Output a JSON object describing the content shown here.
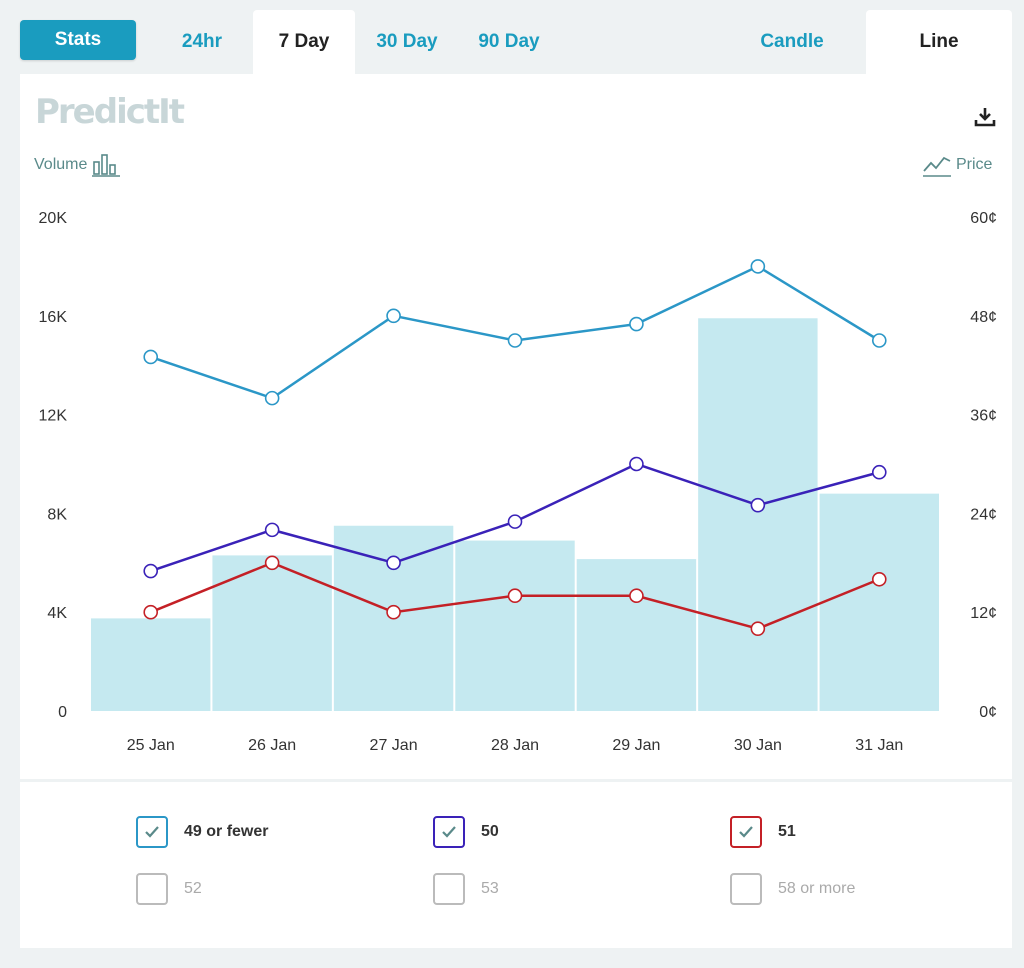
{
  "tabs": {
    "stats": "Stats",
    "ranges": [
      "24hr",
      "7 Day",
      "30 Day",
      "90 Day"
    ],
    "active_range": "7 Day",
    "views": [
      "Candle",
      "Line"
    ],
    "active_view": "Line"
  },
  "brand": {
    "logo": "PredictIt"
  },
  "axes": {
    "left_title": "Volume",
    "right_title": "Price",
    "left_ticks": [
      "0",
      "4K",
      "8K",
      "12K",
      "16K",
      "20K"
    ],
    "right_ticks": [
      "0¢",
      "12¢",
      "24¢",
      "36¢",
      "48¢",
      "60¢"
    ]
  },
  "colors": {
    "volume_bar": "#c5e9f0",
    "series_49": "#2b97c7",
    "series_50": "#3a22b8",
    "series_51": "#c42026"
  },
  "chart_data": {
    "type": "line",
    "categories": [
      "25 Jan",
      "26 Jan",
      "27 Jan",
      "28 Jan",
      "29 Jan",
      "30 Jan",
      "31 Jan"
    ],
    "volume": [
      3750,
      6300,
      7500,
      6900,
      6150,
      15900,
      8800
    ],
    "volume_ylim": [
      0,
      20000
    ],
    "price_ylim": [
      0,
      60
    ],
    "series": [
      {
        "name": "49 or fewer",
        "color": "#2b97c7",
        "values": [
          43,
          38,
          48,
          45,
          47,
          54,
          45
        ]
      },
      {
        "name": "50",
        "color": "#3a22b8",
        "values": [
          17,
          22,
          18,
          23,
          30,
          25,
          29
        ]
      },
      {
        "name": "51",
        "color": "#c42026",
        "values": [
          12,
          18,
          12,
          14,
          14,
          10,
          16
        ]
      }
    ],
    "grid": false
  },
  "legend": [
    {
      "label": "49 or fewer",
      "checked": true,
      "color": "#2b97c7"
    },
    {
      "label": "50",
      "checked": true,
      "color": "#3a22b8"
    },
    {
      "label": "51",
      "checked": true,
      "color": "#c42026"
    },
    {
      "label": "52",
      "checked": false,
      "color": "#bbbbbb"
    },
    {
      "label": "53",
      "checked": false,
      "color": "#bbbbbb"
    },
    {
      "label": "58 or more",
      "checked": false,
      "color": "#bbbbbb"
    }
  ]
}
